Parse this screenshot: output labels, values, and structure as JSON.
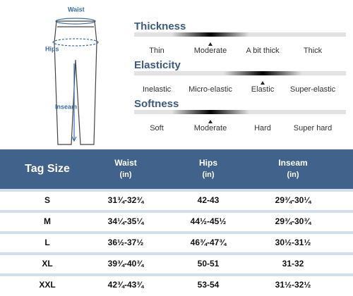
{
  "diagram": {
    "waist": "Waist",
    "hips": "Hips",
    "inseam": "Inseam"
  },
  "scales": [
    {
      "title": "Thickness",
      "options": [
        "Thin",
        "Moderate",
        "A bit thick",
        "Thick"
      ],
      "selected": 1
    },
    {
      "title": "Elasticity",
      "options": [
        "Inelastic",
        "Micro-elastic",
        "Elastic",
        "Super-elastic"
      ],
      "selected": 2
    },
    {
      "title": "Softness",
      "options": [
        "Soft",
        "Moderate",
        "Hard",
        "Super hard"
      ],
      "selected": 1
    }
  ],
  "table": {
    "header": [
      {
        "name": "Tag Size"
      },
      {
        "name": "Waist",
        "unit": "(in)"
      },
      {
        "name": "Hips",
        "unit": "(in)"
      },
      {
        "name": "Inseam",
        "unit": "(in)"
      }
    ],
    "rows": [
      [
        "S",
        "31¾-32¾",
        "42-43",
        "29¾-30¼"
      ],
      [
        "M",
        "34¼-35¼",
        "44½-45½",
        "29¾-30¾"
      ],
      [
        "L",
        "36½-37½",
        "46¾-47¾",
        "30½-31½"
      ],
      [
        "XL",
        "39¾-40¾",
        "50-51",
        "31-32"
      ],
      [
        "XXL",
        "42¾-43¾",
        "53-54",
        "31½-32½"
      ]
    ]
  }
}
